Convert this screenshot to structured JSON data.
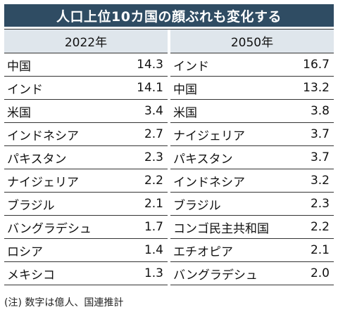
{
  "title": "人口上位10カ国の顔ぶれも変化する",
  "left": {
    "year": "2022年",
    "rows": [
      {
        "name": "中国",
        "value": "14.3"
      },
      {
        "name": "インド",
        "value": "14.1"
      },
      {
        "name": "米国",
        "value": "3.4"
      },
      {
        "name": "インドネシア",
        "value": "2.7"
      },
      {
        "name": "パキスタン",
        "value": "2.3"
      },
      {
        "name": "ナイジェリア",
        "value": "2.2"
      },
      {
        "name": "ブラジル",
        "value": "2.1"
      },
      {
        "name": "バングラデシュ",
        "value": "1.7"
      },
      {
        "name": "ロシア",
        "value": "1.4"
      },
      {
        "name": "メキシコ",
        "value": "1.3"
      }
    ]
  },
  "right": {
    "year": "2050年",
    "rows": [
      {
        "name": "インド",
        "value": "16.7"
      },
      {
        "name": "中国",
        "value": "13.2"
      },
      {
        "name": "米国",
        "value": "3.8"
      },
      {
        "name": "ナイジェリア",
        "value": "3.7"
      },
      {
        "name": "パキスタン",
        "value": "3.7"
      },
      {
        "name": "インドネシア",
        "value": "3.2"
      },
      {
        "name": "ブラジル",
        "value": "2.3"
      },
      {
        "name": "コンゴ民主共和国",
        "value": "2.2"
      },
      {
        "name": "エチオピア",
        "value": "2.1"
      },
      {
        "name": "バングラデシュ",
        "value": "2.0"
      }
    ]
  },
  "note": "(注) 数字は億人、国連推計"
}
